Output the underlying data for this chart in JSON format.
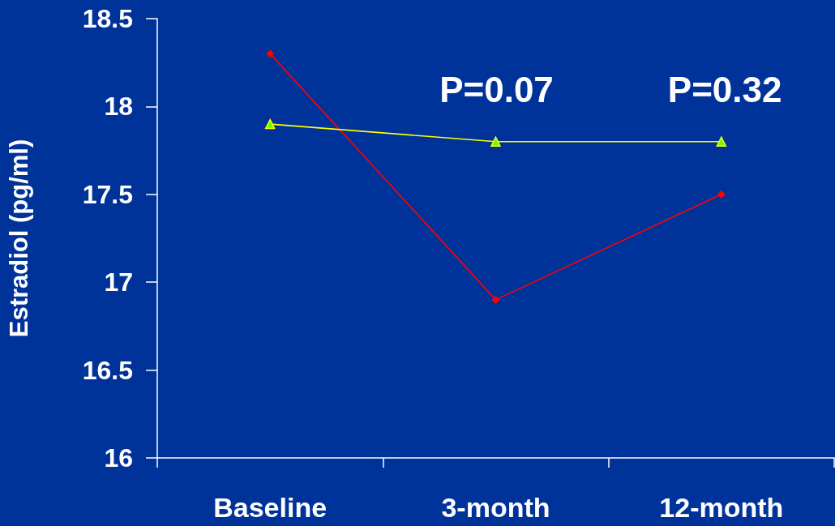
{
  "chart_data": {
    "type": "line",
    "ylabel": "Estradiol (pg/ml)",
    "categories": [
      "Baseline",
      "3-month",
      "12-month"
    ],
    "series": [
      {
        "color": "#ff0000",
        "marker": "diamond",
        "values": [
          18.3,
          16.9,
          17.5
        ]
      },
      {
        "color": "#ffff00",
        "marker": "triangle",
        "values": [
          17.9,
          17.8,
          17.8
        ]
      }
    ],
    "ylim": [
      16,
      18.5
    ],
    "yticks": [
      16,
      16.5,
      17,
      17.5,
      18,
      18.5
    ],
    "grid": false,
    "annotations": [
      "P=0.07",
      "P=0.32"
    ]
  }
}
